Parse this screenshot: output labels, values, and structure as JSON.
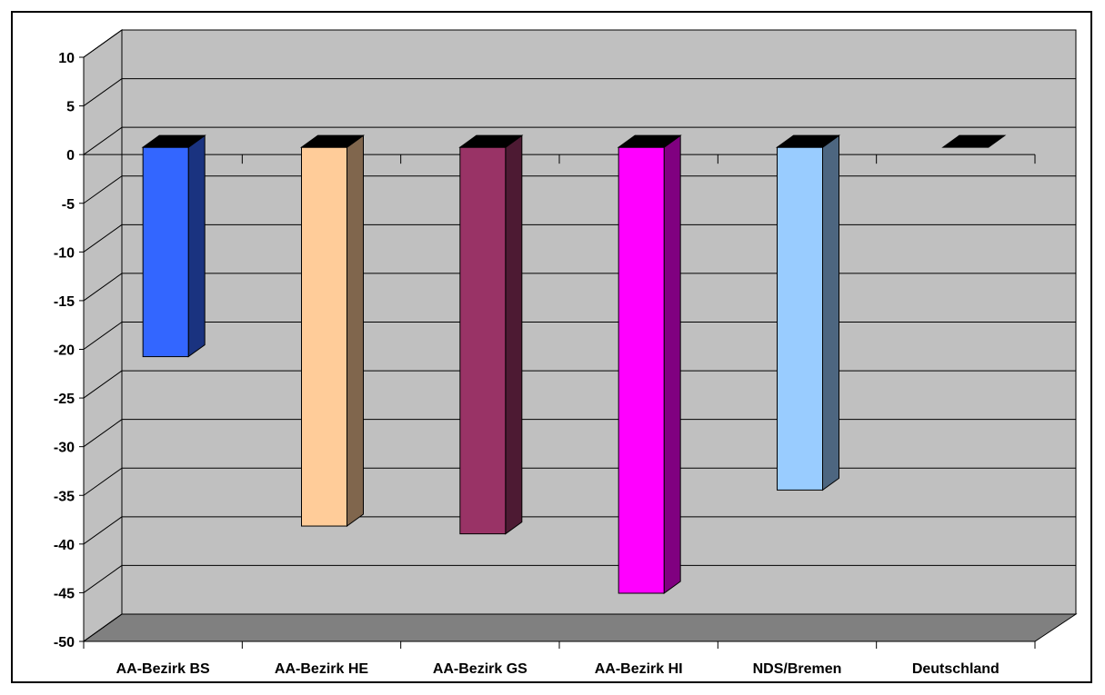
{
  "chart_data": {
    "type": "bar",
    "style": "3d-column",
    "categories": [
      "AA-Bezirk BS",
      "AA-Bezirk HE",
      "AA-Bezirk GS",
      "AA-Bezirk HI",
      "NDS/Bremen",
      "Deutschland"
    ],
    "values": [
      -21.5,
      -38.9,
      -39.7,
      -45.8,
      -35.2,
      0
    ],
    "colors": [
      "#3366ff",
      "#ffcc99",
      "#993366",
      "#ff00ff",
      "#99ccff",
      "#000000"
    ],
    "ylim": [
      -50,
      10
    ],
    "yticks": [
      10,
      5,
      0,
      -5,
      -10,
      -15,
      -20,
      -25,
      -30,
      -35,
      -40,
      -45,
      -50
    ],
    "grid": true,
    "legend": "none",
    "title": "",
    "xlabel": "",
    "ylabel": "",
    "wall_color": "#c0c0c0",
    "floor_color": "#808080"
  }
}
